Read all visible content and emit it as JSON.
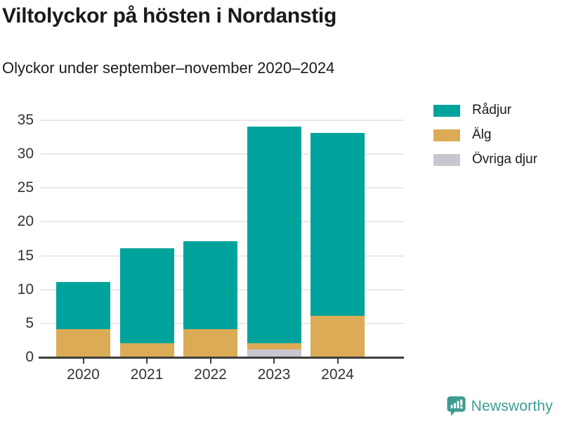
{
  "title": "Viltolyckor på hösten i Nordanstig",
  "subtitle": "Olyckor under september–november 2020–2024",
  "chart_data": {
    "type": "bar",
    "stacked": true,
    "categories": [
      "2020",
      "2021",
      "2022",
      "2023",
      "2024"
    ],
    "series": [
      {
        "name": "Rådjur",
        "color": "#00a39b",
        "values": [
          7,
          14,
          13,
          32,
          27
        ]
      },
      {
        "name": "Älg",
        "color": "#dbac55",
        "values": [
          4,
          2,
          4,
          1,
          6
        ]
      },
      {
        "name": "Övriga djur",
        "color": "#c8c6d0",
        "values": [
          0,
          0,
          0,
          1,
          0
        ]
      }
    ],
    "totals": [
      11,
      16,
      17,
      34,
      33
    ],
    "title": "Viltolyckor på hösten i Nordanstig",
    "xlabel": "",
    "ylabel": "",
    "ylim": [
      0,
      35
    ],
    "yticks": [
      0,
      5,
      10,
      15,
      20,
      25,
      30,
      35
    ],
    "grid": "horizontal",
    "legend_position": "top-right",
    "legend_order": [
      "Rådjur",
      "Älg",
      "Övriga djur"
    ]
  },
  "colors": {
    "grid": "#e8e8e7",
    "axis": "#3d3d3d",
    "tick_text": "#333333",
    "brand": "#3d9c92"
  },
  "footer": {
    "brand": "Newsworthy",
    "logo_icon": "bar-chart-speech-bubble-icon"
  }
}
